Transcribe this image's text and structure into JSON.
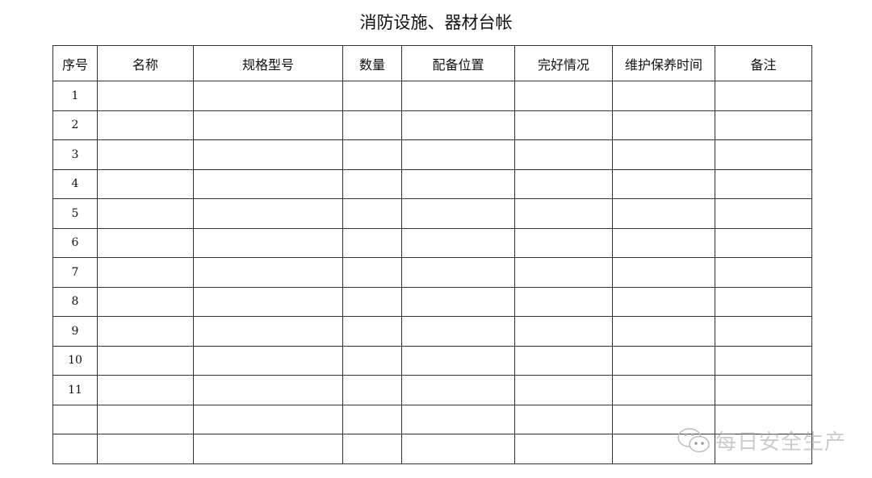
{
  "title": "消防设施、器材台帐",
  "table": {
    "headers": [
      "序号",
      "名称",
      "规格型号",
      "数量",
      "配备位置",
      "完好情况",
      "维护保养时间",
      "备注"
    ],
    "row_numbers": [
      "1",
      "2",
      "3",
      "4",
      "5",
      "6",
      "7",
      "8",
      "9",
      "10",
      "11",
      "",
      ""
    ]
  },
  "watermark": {
    "text": "每日安全生产",
    "icon": "wechat-icon"
  }
}
